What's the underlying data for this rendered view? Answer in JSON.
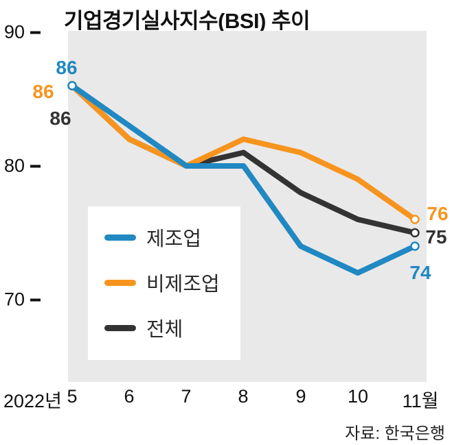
{
  "title": "기업경기실사지수(BSI) 추이",
  "source": "자료: 한국은행",
  "chart_data": {
    "type": "line",
    "title": "기업경기실사지수(BSI) 추이",
    "x_axis_prefix": "2022년",
    "x_tick_labels": [
      "5",
      "6",
      "7",
      "8",
      "9",
      "10",
      "11월"
    ],
    "categories": [
      "2022-05",
      "2022-06",
      "2022-07",
      "2022-08",
      "2022-09",
      "2022-10",
      "2022-11"
    ],
    "ylim": [
      70,
      90
    ],
    "yticks": [
      "90",
      "80",
      "70"
    ],
    "grid": false,
    "legend_position": "inside-left",
    "plot_background": "#e9e9e9",
    "series": [
      {
        "name": "제조업",
        "color": "#2088c2",
        "values": [
          86,
          83,
          80,
          80,
          74,
          72,
          74
        ]
      },
      {
        "name": "비제조업",
        "color": "#f7941e",
        "values": [
          86,
          82,
          80,
          82,
          81,
          79,
          76
        ]
      },
      {
        "name": "전체",
        "color": "#333333",
        "values": [
          86,
          82,
          80,
          81,
          78,
          76,
          75
        ]
      }
    ]
  }
}
